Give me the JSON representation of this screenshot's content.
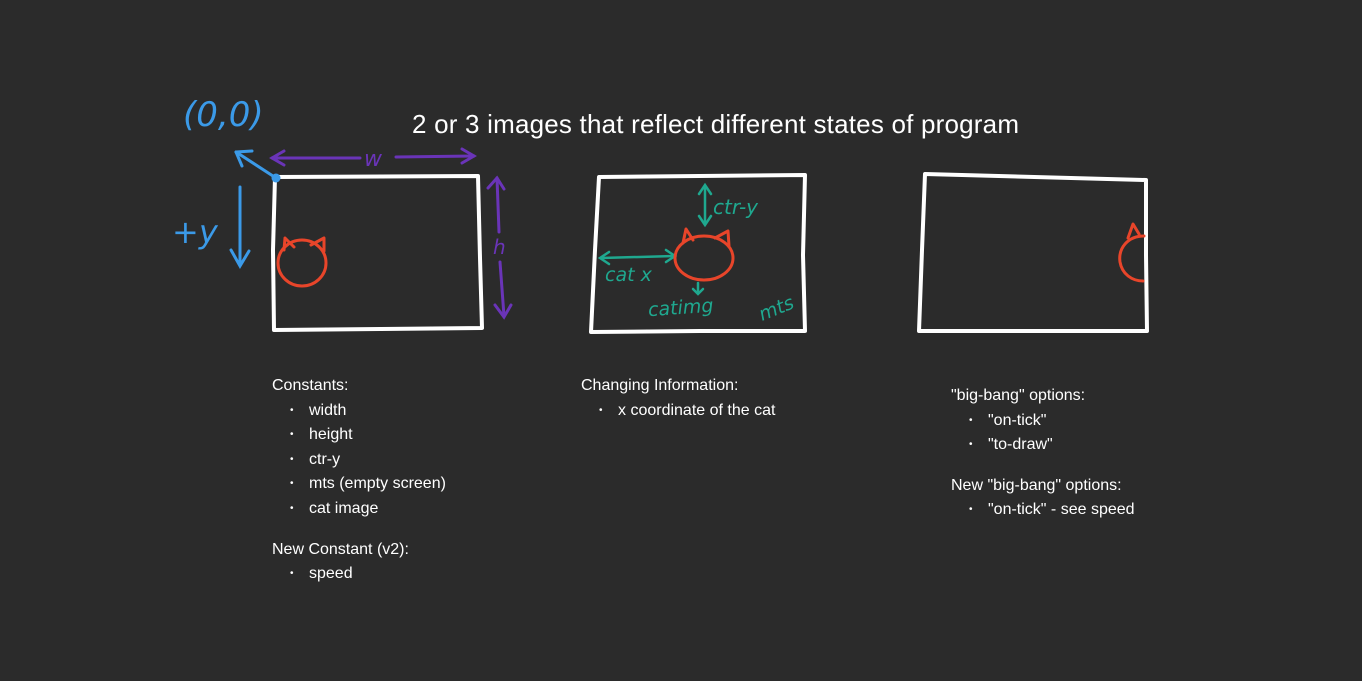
{
  "title": "2 or 3 images that reflect different states of program",
  "sketch_labels": {
    "origin": "(0,0)",
    "width": "w",
    "height": "h",
    "plus_y": "+y",
    "ctr_y": "ctr-y",
    "cat_x": "cat x",
    "cat_img": "catimg",
    "mts": "mts"
  },
  "colors": {
    "background": "#2b2b2b",
    "frame": "#ffffff",
    "cat": "#e8452a",
    "blue": "#3b9ae8",
    "purple": "#6a34b8",
    "teal": "#1fa88f"
  },
  "notes_left": {
    "constants_heading": "Constants:",
    "constants": [
      "width",
      "height",
      "ctr-y",
      "mts (empty screen)",
      "cat image"
    ],
    "new_heading": "New Constant (v2):",
    "new_items": [
      "speed"
    ]
  },
  "notes_mid": {
    "heading": "Changing Information:",
    "items": [
      "x coordinate of the cat"
    ]
  },
  "notes_right": {
    "heading": "\"big-bang\" options:",
    "items": [
      "\"on-tick\"",
      "\"to-draw\""
    ],
    "new_heading": "New \"big-bang\" options:",
    "new_items": [
      "\"on-tick\" - see speed"
    ]
  }
}
